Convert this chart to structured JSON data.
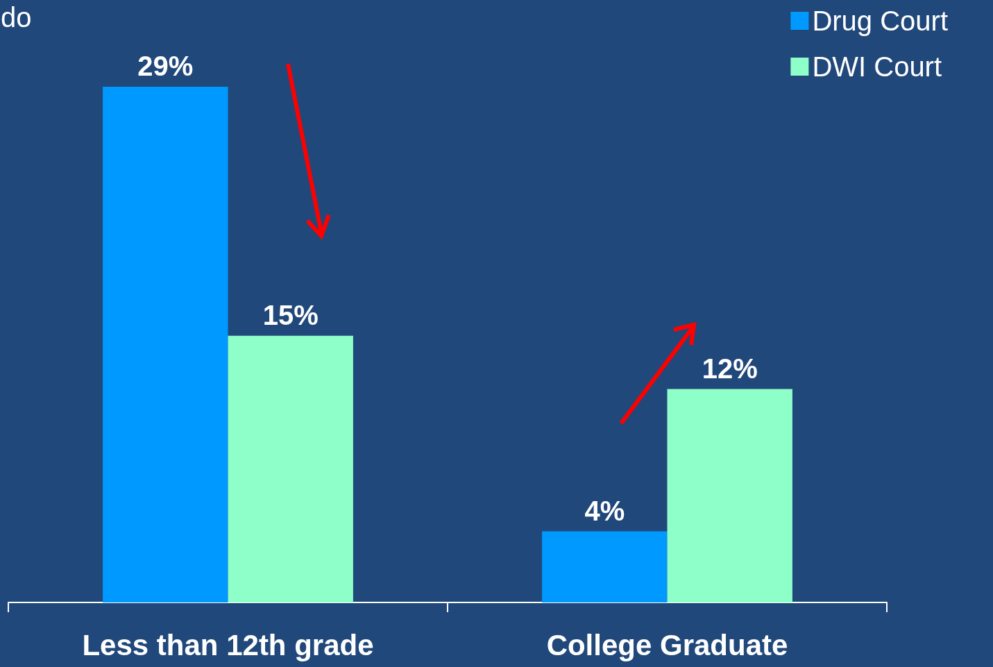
{
  "chart_data": {
    "type": "bar",
    "title": "do",
    "categories": [
      "Less than 12th grade",
      "College Graduate"
    ],
    "series": [
      {
        "name": "Drug Court",
        "color": "#0099ff",
        "values": [
          29,
          4
        ],
        "value_labels": [
          "29%",
          "4%"
        ]
      },
      {
        "name": "DWI Court",
        "color": "#8effc8",
        "values": [
          15,
          12
        ],
        "value_labels": [
          "15%",
          "12%"
        ]
      }
    ],
    "legend": "top right",
    "grid": false
  }
}
